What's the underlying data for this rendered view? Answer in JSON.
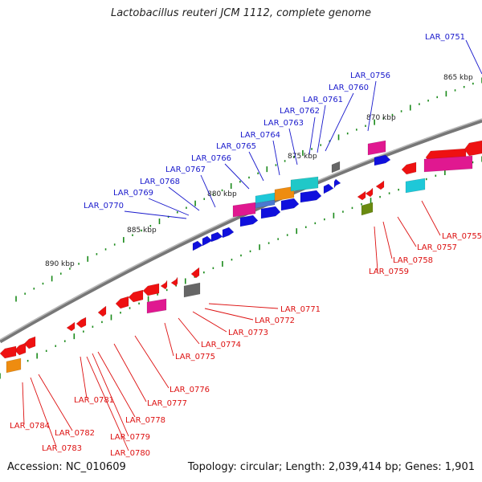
{
  "title": "Lactobacillus reuteri JCM 1112, complete genome",
  "footer": {
    "accession": "Accession: NC_010609",
    "summary": "Topology: circular; Length: 2,039,414 bp; Genes: 1,901"
  },
  "scale_labels": [
    "865 kbp",
    "870 kbp",
    "875 kbp",
    "880 kbp",
    "885 kbp",
    "890 kbp"
  ],
  "colors": {
    "forward_label": "#1a1acc",
    "reverse_label": "#dd1111",
    "backbone": "#808080",
    "tick": "#1a8a1a"
  },
  "forward_genes": [
    "LAR_0751",
    "LAR_0756",
    "LAR_0760",
    "LAR_0761",
    "LAR_0762",
    "LAR_0763",
    "LAR_0764",
    "LAR_0765",
    "LAR_0766",
    "LAR_0767",
    "LAR_0768",
    "LAR_0769",
    "LAR_0770"
  ],
  "reverse_genes": [
    "LAR_0755",
    "LAR_0757",
    "LAR_0758",
    "LAR_0759",
    "LAR_0771",
    "LAR_0772",
    "LAR_0773",
    "LAR_0774",
    "LAR_0775",
    "LAR_0776",
    "LAR_0777",
    "LAR_0778",
    "LAR_0779",
    "LAR_0780",
    "LAR_0781",
    "LAR_0782",
    "LAR_0783",
    "LAR_0784"
  ]
}
